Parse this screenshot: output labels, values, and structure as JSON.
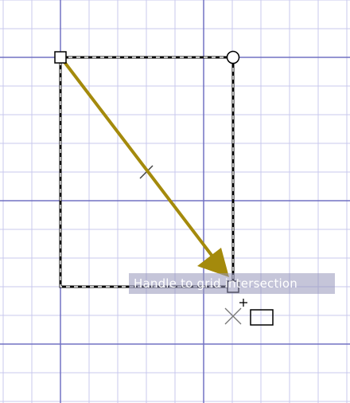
{
  "canvas": {
    "background": "#ffffff",
    "grid": {
      "minor_color": "#c8c8ee",
      "major_color": "#7272c4"
    },
    "shape": {
      "outline_color": "#000000",
      "selection_dash": "dashed"
    },
    "annotation_arrow": {
      "color": "#a48a0c",
      "meaning": "drag handle from top-left corner to grid intersection"
    },
    "cursor": {
      "icon": "snap-cursor-icon"
    }
  },
  "tooltip": {
    "text": "Handle to grid intersection"
  }
}
